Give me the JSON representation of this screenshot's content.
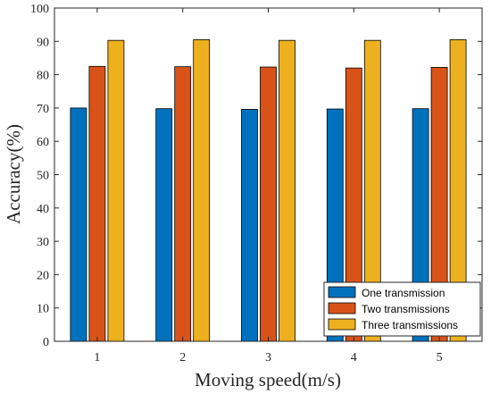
{
  "chart_data": {
    "type": "bar",
    "title": "",
    "xlabel": "Moving speed(m/s)",
    "ylabel": "Accuracy(%)",
    "categories": [
      "1",
      "2",
      "3",
      "4",
      "5"
    ],
    "ylim": [
      0,
      100
    ],
    "yticks": [
      "0",
      "10",
      "20",
      "30",
      "40",
      "50",
      "60",
      "70",
      "80",
      "90",
      "100"
    ],
    "grid": false,
    "legend_position": "bottom-right",
    "series": [
      {
        "name": "One transmission",
        "color": "#0072BD",
        "values": [
          70.0,
          69.8,
          69.6,
          69.7,
          69.8
        ]
      },
      {
        "name": "Two transmissions",
        "color": "#D95319",
        "values": [
          82.5,
          82.4,
          82.3,
          82.0,
          82.2
        ]
      },
      {
        "name": "Three transmissions",
        "color": "#EDB120",
        "values": [
          90.3,
          90.5,
          90.3,
          90.3,
          90.5
        ]
      }
    ]
  }
}
